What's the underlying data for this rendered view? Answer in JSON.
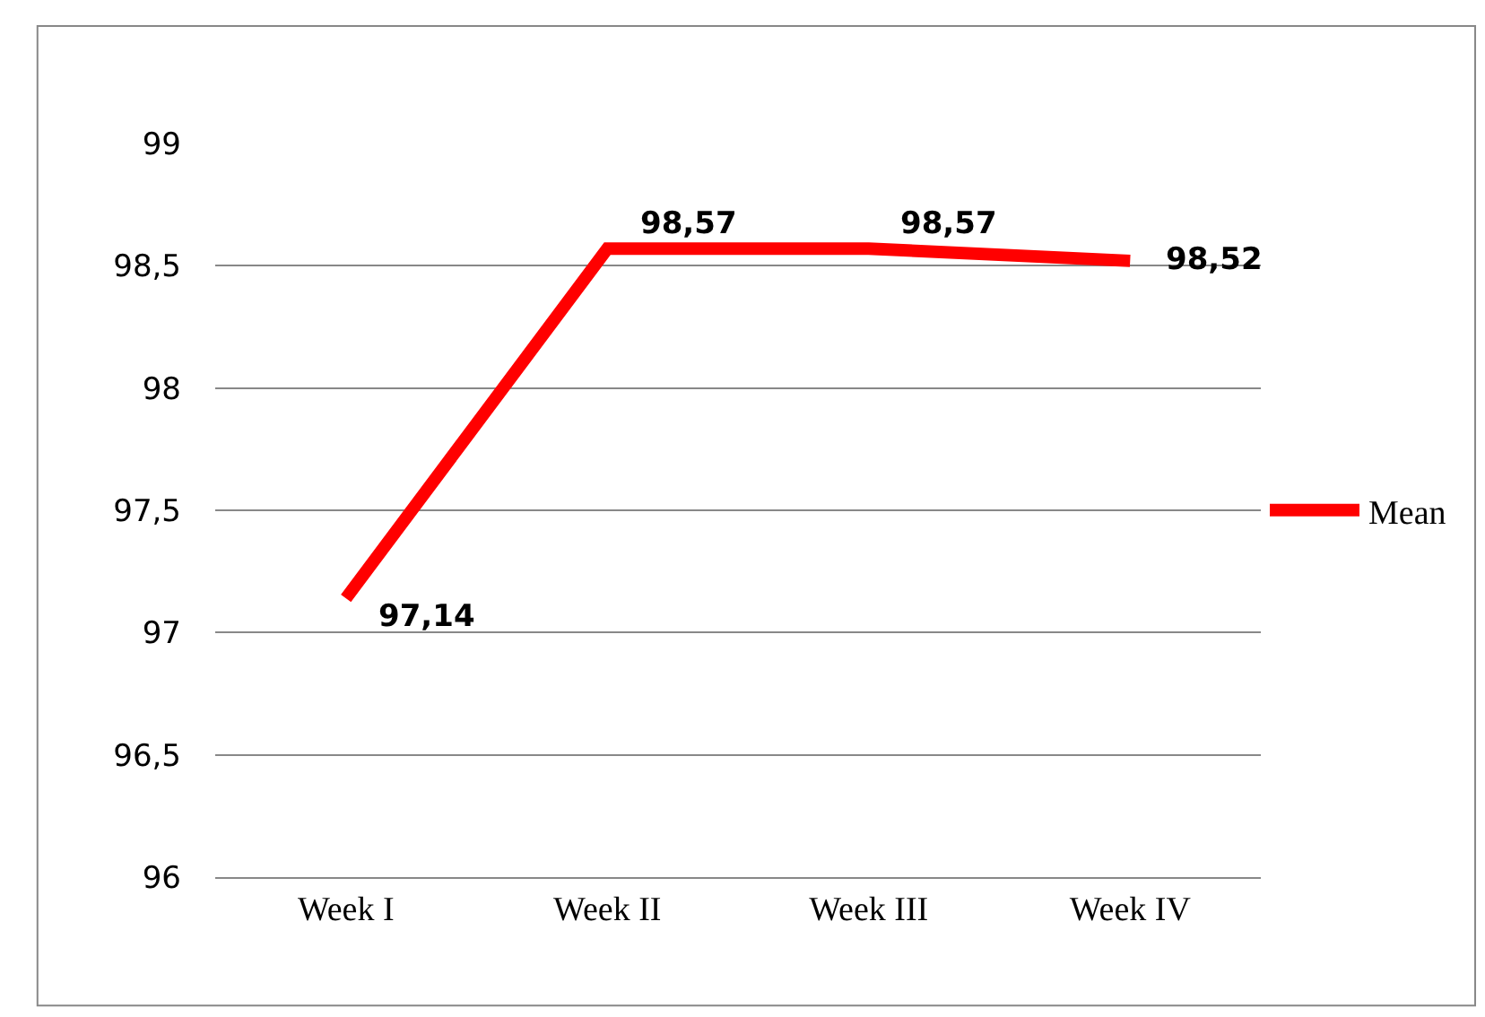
{
  "chart_data": {
    "type": "line",
    "categories": [
      "Week I",
      "Week II",
      "Week III",
      "Week IV"
    ],
    "series": [
      {
        "name": "Mean",
        "color": "#ff0000",
        "values": [
          97.14,
          98.57,
          98.57,
          98.52
        ],
        "value_labels": [
          "97,14",
          "98,57",
          "98,57",
          "98,52"
        ]
      }
    ],
    "ylim": [
      96,
      99
    ],
    "yticks": [
      96,
      {
        "value": 96.5,
        "label": "96,5"
      },
      97,
      {
        "value": 97.5,
        "label": "97,5"
      },
      98,
      {
        "value": 98.5,
        "label": "98,5"
      },
      99
    ],
    "grid": "y",
    "legend": "right",
    "marker": "none",
    "line_style": "solid"
  }
}
